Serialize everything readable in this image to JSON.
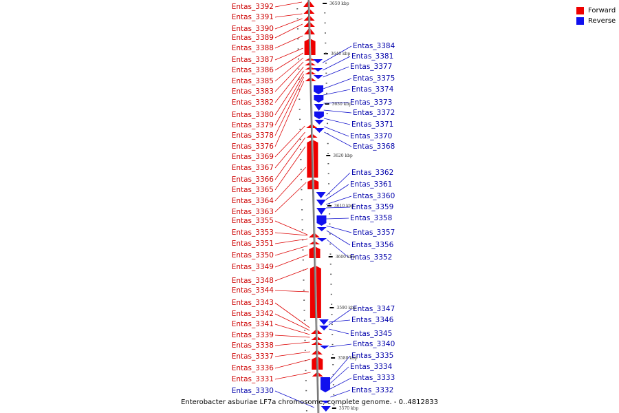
{
  "legend": {
    "forward": {
      "label": "Forward",
      "color": "#ee0000"
    },
    "reverse": {
      "label": "Reverse",
      "color": "#1010ee"
    }
  },
  "caption": "Enterobacter asburiae LF7a chromosome, complete genome. - 0..4812833",
  "ticks": [
    {
      "label": "3650 kbp",
      "pos": 3650
    },
    {
      "label": "3640 kbp",
      "pos": 3640
    },
    {
      "label": "3630 kbp",
      "pos": 3630
    },
    {
      "label": "3620 kbp",
      "pos": 3620
    },
    {
      "label": "3610 kbp",
      "pos": 3610
    },
    {
      "label": "3600 kbp",
      "pos": 3600
    },
    {
      "label": "3590 kbp",
      "pos": 3590
    },
    {
      "label": "3580 kbp",
      "pos": 3580
    },
    {
      "label": "3570 kbp",
      "pos": 3570
    }
  ],
  "forward_genes": [
    "Entas_3392",
    "Entas_3391",
    "Entas_3390",
    "Entas_3389",
    "Entas_3388",
    "Entas_3387",
    "Entas_3386",
    "Entas_3385",
    "Entas_3383",
    "Entas_3382",
    "Entas_3380",
    "Entas_3379",
    "Entas_3378",
    "Entas_3376",
    "Entas_3369",
    "Entas_3367",
    "Entas_3366",
    "Entas_3365",
    "Entas_3364",
    "Entas_3363",
    "Entas_3355",
    "Entas_3353",
    "Entas_3351",
    "Entas_3350",
    "Entas_3349",
    "Entas_3348",
    "Entas_3344",
    "Entas_3343",
    "Entas_3342",
    "Entas_3341",
    "Entas_3339",
    "Entas_3338",
    "Entas_3337",
    "Entas_3336",
    "Entas_3331"
  ],
  "reverse_genes": [
    "Entas_3384",
    "Entas_3381",
    "Entas_3377",
    "Entas_3375",
    "Entas_3374",
    "Entas_3373",
    "Entas_3372",
    "Entas_3371",
    "Entas_3370",
    "Entas_3368",
    "Entas_3362",
    "Entas_3361",
    "Entas_3360",
    "Entas_3359",
    "Entas_3358",
    "Entas_3357",
    "Entas_3356",
    "Entas_3352",
    "Entas_3347",
    "Entas_3346",
    "Entas_3345",
    "Entas_3340",
    "Entas_3335",
    "Entas_3334",
    "Entas_3333",
    "Entas_3332",
    "Entas_3330"
  ]
}
